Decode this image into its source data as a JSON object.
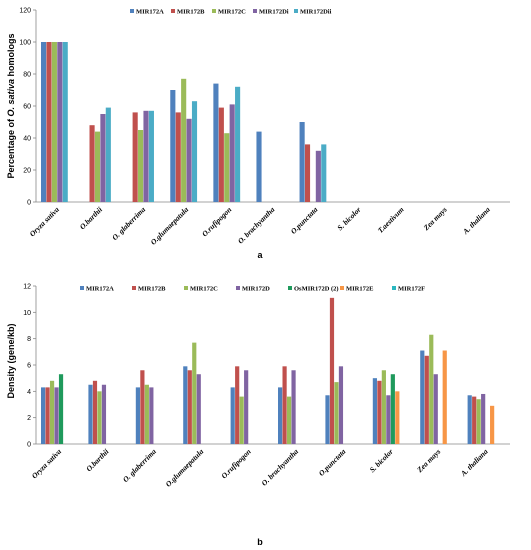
{
  "chart_data": [
    {
      "type": "bar",
      "panel_label": "a",
      "ylabel_parts": [
        "Percentage of ",
        "O. sativa",
        " homologs"
      ],
      "ylim": [
        0,
        120
      ],
      "yticks": [
        0,
        20,
        40,
        60,
        80,
        100,
        120
      ],
      "categories": [
        "Oryza sativa",
        "O.barthii",
        "O. glaberrima",
        "O.glumaepatula",
        "O.rufipogon",
        "O. brachyantha",
        "O.punctata",
        "S. bicolor",
        "T.aestivum",
        "Zea mays",
        "A. thaliana"
      ],
      "series": [
        {
          "name": "MIR172A",
          "color": "#4f81bd",
          "values": [
            100,
            0,
            0,
            70,
            74,
            44,
            50,
            0,
            0,
            0,
            0
          ]
        },
        {
          "name": "MIR172B",
          "color": "#c0504d",
          "values": [
            100,
            48,
            56,
            56,
            59,
            0,
            36,
            0,
            0,
            0,
            0
          ]
        },
        {
          "name": "MIR172C",
          "color": "#9bbb59",
          "values": [
            100,
            44,
            45,
            77,
            43,
            0,
            0,
            0,
            0,
            0,
            0
          ]
        },
        {
          "name": "MIR172Di",
          "color": "#8064a2",
          "values": [
            100,
            55,
            57,
            52,
            61,
            0,
            32,
            0,
            0,
            0,
            0
          ]
        },
        {
          "name": "MIR172Dii",
          "color": "#4bacc6",
          "values": [
            100,
            59,
            57,
            63,
            72,
            0,
            36,
            0,
            0,
            0,
            0
          ]
        }
      ]
    },
    {
      "type": "bar",
      "panel_label": "b",
      "ylabel_parts": [
        "Density (gene/kb)"
      ],
      "ylim": [
        0,
        12
      ],
      "yticks": [
        0,
        2,
        4,
        6,
        8,
        10,
        12
      ],
      "categories": [
        "Oryza sativa",
        "O.barthii",
        "O. glaberrima",
        "O.glumaepatula",
        "O.rufipogon",
        "O. brachyantha",
        "O.punctata",
        "S. bicolor",
        "Zea mays",
        "A. thaliana"
      ],
      "series": [
        {
          "name": "MIR172A",
          "color": "#4f81bd",
          "values": [
            4.3,
            4.5,
            4.3,
            5.9,
            4.3,
            4.3,
            3.7,
            5.0,
            7.1,
            3.7
          ]
        },
        {
          "name": "MIR172B",
          "color": "#c0504d",
          "values": [
            4.3,
            4.8,
            5.6,
            5.6,
            5.9,
            5.9,
            11.1,
            4.8,
            6.7,
            3.6
          ]
        },
        {
          "name": "MIR172C",
          "color": "#9bbb59",
          "values": [
            4.8,
            4.0,
            4.5,
            7.7,
            3.6,
            3.6,
            4.7,
            5.6,
            8.3,
            3.4
          ]
        },
        {
          "name": "MIR172D",
          "color": "#8064a2",
          "values": [
            4.3,
            4.5,
            4.3,
            5.3,
            5.6,
            5.6,
            5.9,
            3.7,
            5.3,
            3.8
          ]
        },
        {
          "name": "OsMIR172D (2)",
          "color": "#1f9a5c",
          "values": [
            5.3,
            0,
            0,
            0,
            0,
            0,
            0,
            5.3,
            0,
            0
          ]
        },
        {
          "name": "MIR172E",
          "color": "#f79646",
          "values": [
            0,
            0,
            0,
            0,
            0,
            0,
            0,
            4.0,
            7.1,
            2.9
          ]
        },
        {
          "name": "MIR172F",
          "color": "#2ab7c0",
          "values": [
            0,
            0,
            0,
            0,
            0,
            0,
            0,
            0,
            0,
            0
          ]
        }
      ]
    }
  ]
}
